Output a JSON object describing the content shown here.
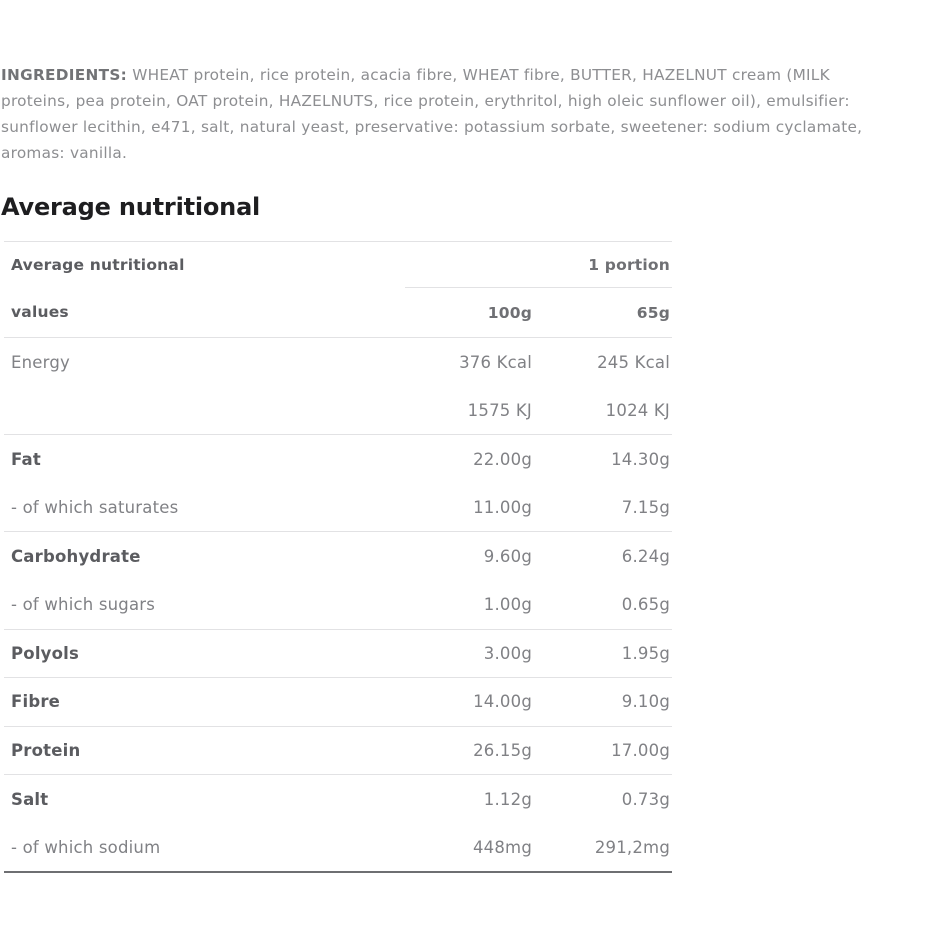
{
  "colors": {
    "background": "#ffffff",
    "heading_text": "#1e1e20",
    "body_text": "#8d8e91",
    "table_text": "#808185",
    "table_bold_text": "#5b5c60",
    "separator": "#e2e2e4",
    "table_bottom_rule": "#6e6f72"
  },
  "ingredients": {
    "label": "INGREDIENTS:",
    "line1_rest": " WHEAT protein, rice protein, acacia fibre, WHEAT fibre, BUTTER, HAZELNUT cream (MILK",
    "line2": "proteins, pea protein, OAT protein, HAZELNUTS, rice protein, erythritol, high oleic sunflower oil), emulsifier:",
    "line3": "sunflower lecithin, e471, salt, natural yeast, preservative: potassium sorbate, sweetener: sodium cyclamate,",
    "line4": "aromas: vanilla."
  },
  "section": {
    "title": "Average nutritional"
  },
  "table": {
    "header": {
      "row1_label": "Average nutritional",
      "row1_portion": "1 portion",
      "row2_label": "values",
      "row2_col100": "100g",
      "row2_col65": "65g"
    },
    "rows": [
      {
        "label": "Energy",
        "v100": "376 Kcal",
        "v65": "245 Kcal"
      },
      {
        "label": "",
        "v100": "1575 KJ",
        "v65": "1024 KJ"
      },
      {
        "label": "Fat",
        "v100": "22.00g",
        "v65": "14.30g"
      },
      {
        "label": "- of which saturates",
        "v100": "11.00g",
        "v65": "7.15g"
      },
      {
        "label": "Carbohydrate",
        "v100": "9.60g",
        "v65": "6.24g"
      },
      {
        "label": "- of which sugars",
        "v100": "1.00g",
        "v65": "0.65g"
      },
      {
        "label": "Polyols",
        "v100": "3.00g",
        "v65": "1.95g"
      },
      {
        "label": "Fibre",
        "v100": "14.00g",
        "v65": "9.10g"
      },
      {
        "label": "Protein",
        "v100": "26.15g",
        "v65": "17.00g"
      },
      {
        "label": "Salt",
        "v100": "1.12g",
        "v65": "0.73g"
      },
      {
        "label": "- of which sodium",
        "v100": "448mg",
        "v65": "291,2mg"
      }
    ]
  }
}
